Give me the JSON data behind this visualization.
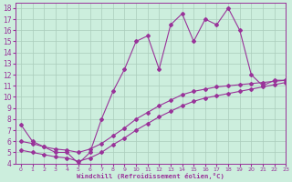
{
  "background_color": "#cceedd",
  "grid_color": "#aaccbb",
  "line_color": "#993399",
  "xlabel": "Windchill (Refroidissement éolien,°C)",
  "xlim": [
    -0.5,
    23
  ],
  "ylim": [
    4,
    18.5
  ],
  "xticks": [
    0,
    1,
    2,
    3,
    4,
    5,
    6,
    7,
    8,
    9,
    10,
    11,
    12,
    13,
    14,
    15,
    16,
    17,
    18,
    19,
    20,
    21,
    22,
    23
  ],
  "yticks": [
    4,
    5,
    6,
    7,
    8,
    9,
    10,
    11,
    12,
    13,
    14,
    15,
    16,
    17,
    18
  ],
  "series": [
    {
      "x": [
        0,
        1,
        2,
        3,
        4,
        5,
        6,
        7,
        8,
        9,
        10,
        11,
        12,
        13,
        14,
        15,
        16,
        17,
        18,
        19,
        20,
        21,
        22,
        23
      ],
      "y": [
        7.5,
        6.0,
        5.5,
        5.0,
        5.0,
        4.0,
        5.0,
        8.0,
        10.5,
        12.5,
        15.0,
        15.5,
        12.5,
        16.5,
        17.5,
        15.0,
        17.0,
        16.5,
        18.0,
        16.0,
        12.0,
        11.0,
        11.5,
        11.5
      ]
    },
    {
      "x": [
        0,
        1,
        2,
        3,
        4,
        5,
        6,
        7,
        8,
        9,
        10,
        11,
        12,
        13,
        14,
        15,
        16,
        17,
        18,
        19,
        20,
        21,
        22,
        23
      ],
      "y": [
        6.0,
        5.8,
        5.5,
        5.3,
        5.2,
        5.0,
        5.3,
        5.8,
        6.5,
        7.2,
        8.0,
        8.6,
        9.2,
        9.7,
        10.2,
        10.5,
        10.7,
        10.9,
        11.0,
        11.1,
        11.2,
        11.3,
        11.4,
        11.5
      ]
    },
    {
      "x": [
        0,
        1,
        2,
        3,
        4,
        5,
        6,
        7,
        8,
        9,
        10,
        11,
        12,
        13,
        14,
        15,
        16,
        17,
        18,
        19,
        20,
        21,
        22,
        23
      ],
      "y": [
        5.2,
        5.0,
        4.8,
        4.6,
        4.5,
        4.2,
        4.5,
        5.0,
        5.7,
        6.3,
        7.0,
        7.6,
        8.2,
        8.7,
        9.2,
        9.6,
        9.9,
        10.1,
        10.3,
        10.5,
        10.7,
        10.9,
        11.1,
        11.3
      ]
    }
  ]
}
